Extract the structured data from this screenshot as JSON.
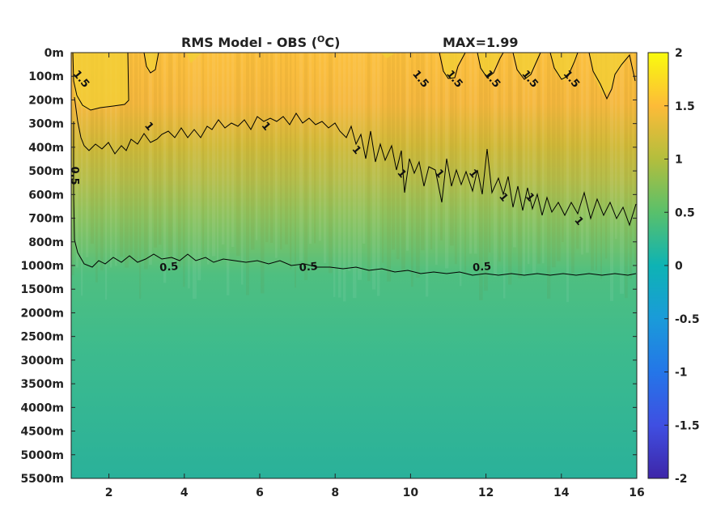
{
  "chart_data": {
    "type": "heatmap",
    "title": "RMS Model - OBS (",
    "title_sup": "O",
    "title_unit_close": "C)",
    "title_max": "MAX=1.99",
    "x_ticks": [
      "2",
      "4",
      "6",
      "8",
      "10",
      "12",
      "14",
      "16"
    ],
    "x_tick_values": [
      2,
      4,
      6,
      8,
      10,
      12,
      14,
      16
    ],
    "xlim": [
      1,
      16
    ],
    "y_ticks": [
      "0m",
      "100m",
      "200m",
      "300m",
      "400m",
      "500m",
      "600m",
      "700m",
      "800m",
      "1000m",
      "1500m",
      "2000m",
      "2500m",
      "3000m",
      "3500m",
      "4000m",
      "4500m",
      "5000m",
      "5500m"
    ],
    "y_axis_direction": "depth increases downward (non-uniform level spacing)",
    "colorbar": {
      "colormap": "parula",
      "range": [
        -2,
        2
      ],
      "ticks": [
        "2",
        "1.5",
        "1",
        "0.5",
        "0",
        "-0.5",
        "-1",
        "-1.5",
        "-2"
      ],
      "tick_values": [
        2,
        1.5,
        1,
        0.5,
        0,
        -0.5,
        -1,
        -1.5,
        -2
      ]
    },
    "contour_levels": [
      0.5,
      1,
      1.5
    ],
    "contour_labels": [
      {
        "text": "1.5",
        "x": 1.2,
        "level": "100m"
      },
      {
        "text": "1.5",
        "x": 10.2,
        "level": "100m"
      },
      {
        "text": "1.5",
        "x": 11.1,
        "level": "100m"
      },
      {
        "text": "1.5",
        "x": 12.1,
        "level": "100m"
      },
      {
        "text": "1.5",
        "x": 13.1,
        "level": "100m"
      },
      {
        "text": "1.5",
        "x": 14.2,
        "level": "100m"
      },
      {
        "text": "1",
        "x": 3.0,
        "level": "300m"
      },
      {
        "text": "1",
        "x": 6.1,
        "level": "300m"
      },
      {
        "text": "1",
        "x": 8.5,
        "level": "400m"
      },
      {
        "text": "1",
        "x": 9.7,
        "level": "500m"
      },
      {
        "text": "1",
        "x": 10.7,
        "level": "500m"
      },
      {
        "text": "1",
        "x": 11.6,
        "level": "500m"
      },
      {
        "text": "1",
        "x": 12.4,
        "level": "600m"
      },
      {
        "text": "1",
        "x": 13.1,
        "level": "600m"
      },
      {
        "text": "1",
        "x": 14.4,
        "level": "700m"
      },
      {
        "text": "0.5",
        "x": 1.0,
        "level": "500m"
      },
      {
        "text": "0.5",
        "x": 3.6,
        "level": "1000m"
      },
      {
        "text": "0.5",
        "x": 7.3,
        "level": "1000m"
      },
      {
        "text": "0.5",
        "x": 11.9,
        "level": "1000m"
      }
    ],
    "value_profile_by_level": [
      {
        "level": "0m",
        "value": 1.45
      },
      {
        "level": "100m",
        "value": 1.4
      },
      {
        "level": "200m",
        "value": 1.3
      },
      {
        "level": "300m",
        "value": 1.1
      },
      {
        "level": "400m",
        "value": 1.0
      },
      {
        "level": "500m",
        "value": 0.95
      },
      {
        "level": "600m",
        "value": 0.85
      },
      {
        "level": "700m",
        "value": 0.75
      },
      {
        "level": "800m",
        "value": 0.6
      },
      {
        "level": "1000m",
        "value": 0.48
      },
      {
        "level": "1500m",
        "value": 0.4
      },
      {
        "level": "2500m",
        "value": 0.35
      },
      {
        "level": "4000m",
        "value": 0.3
      },
      {
        "level": "5500m",
        "value": 0.25
      }
    ]
  }
}
